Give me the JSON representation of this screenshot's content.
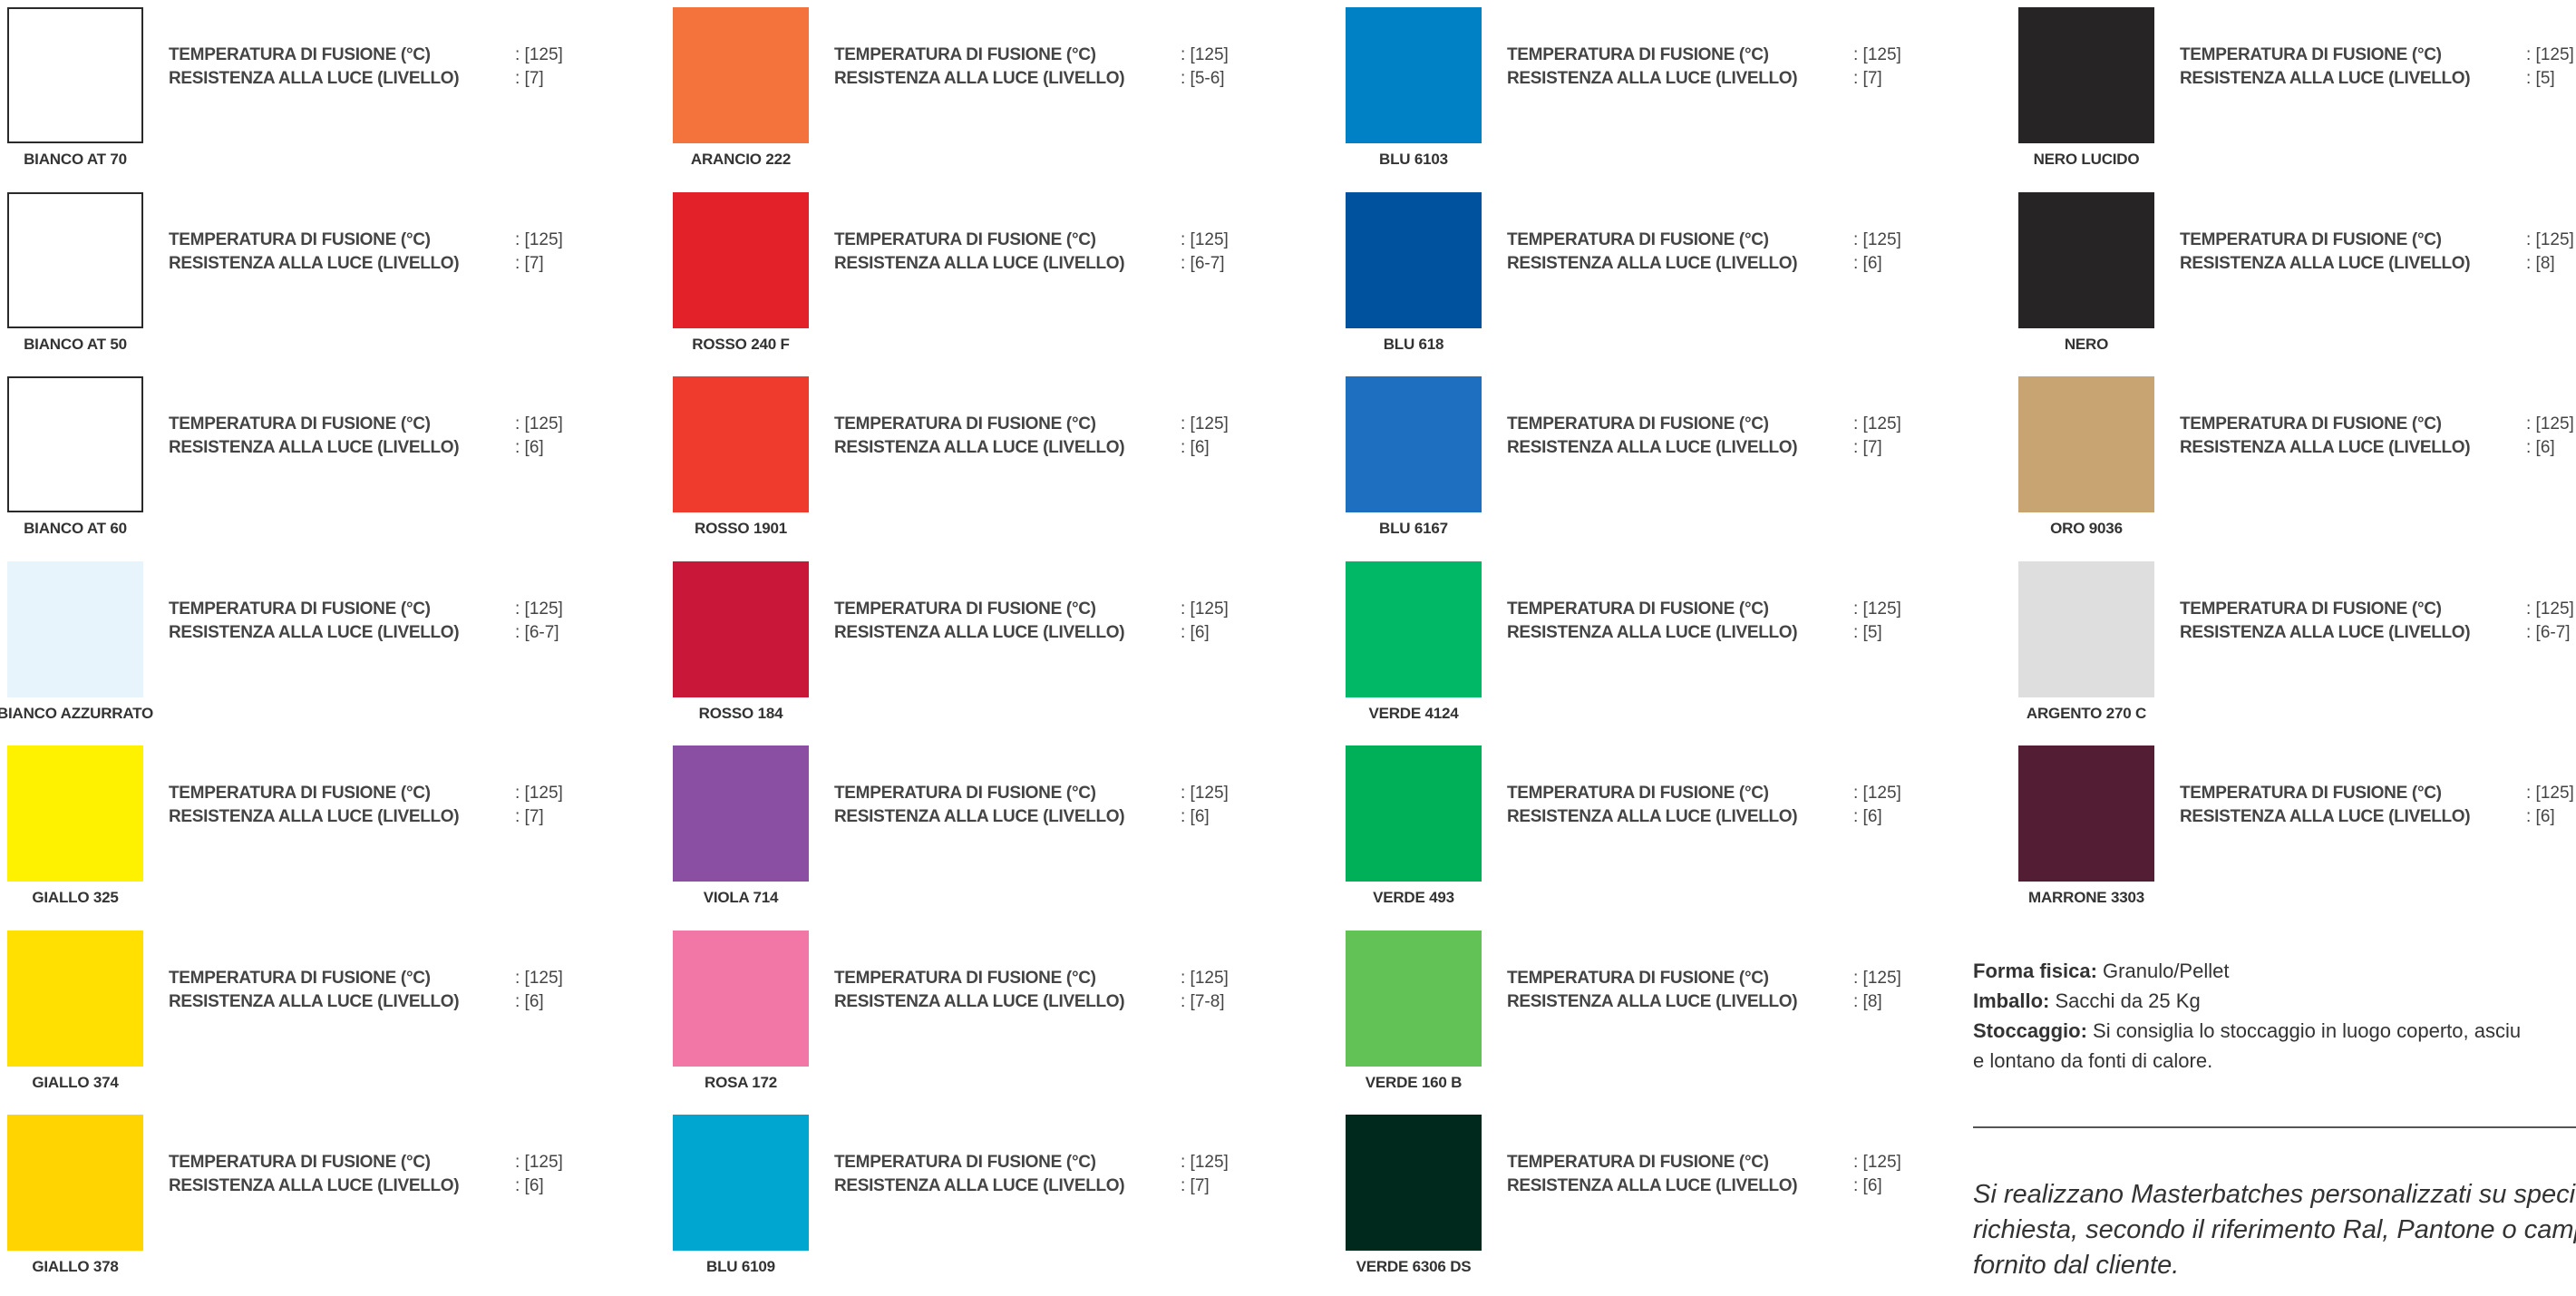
{
  "labels": {
    "temperatura": "TEMPERATURA DI FUSIONE (°C)",
    "resistenza": "RESISTENZA ALLA LUCE (LIVELLO)"
  },
  "columns": [
    {
      "items": [
        {
          "name": "BIANCO AT 70",
          "color": "#ffffff",
          "bordered": true,
          "temp": ": [125]",
          "light": ": [7]"
        },
        {
          "name": "BIANCO AT 50",
          "color": "#ffffff",
          "bordered": true,
          "temp": ": [125]",
          "light": ": [7]"
        },
        {
          "name": "BIANCO AT 60",
          "color": "#ffffff",
          "bordered": true,
          "temp": ": [125]",
          "light": ": [6]"
        },
        {
          "name": "BIANCO AZZURRATO",
          "color": "#e8f4fb",
          "bordered": false,
          "temp": ": [125]",
          "light": ": [6-7]"
        },
        {
          "name": "GIALLO 325",
          "color": "#fff200",
          "bordered": false,
          "temp": ": [125]",
          "light": ": [7]"
        },
        {
          "name": "GIALLO 374",
          "color": "#ffe000",
          "bordered": false,
          "temp": ": [125]",
          "light": ": [6]"
        },
        {
          "name": "GIALLO 378",
          "color": "#ffd400",
          "bordered": false,
          "temp": ": [125]",
          "light": ": [6]"
        }
      ]
    },
    {
      "items": [
        {
          "name": "ARANCIO 222",
          "color": "#f4733c",
          "bordered": false,
          "temp": ": [125]",
          "light": ": [5-6]"
        },
        {
          "name": "ROSSO  240 F",
          "color": "#e32129",
          "bordered": false,
          "temp": ": [125]",
          "light": ": [6-7]"
        },
        {
          "name": "ROSSO 1901",
          "color": "#ef3b2d",
          "bordered": false,
          "temp": ": [125]",
          "light": ": [6]"
        },
        {
          "name": "ROSSO 184",
          "color": "#c9173a",
          "bordered": false,
          "temp": ": [125]",
          "light": ": [6]"
        },
        {
          "name": "VIOLA 714",
          "color": "#8a4fa3",
          "bordered": false,
          "temp": ": [125]",
          "light": ": [6]"
        },
        {
          "name": "ROSA 172",
          "color": "#f277a6",
          "bordered": false,
          "temp": ": [125]",
          "light": ": [7-8]"
        },
        {
          "name": "BLU 6109",
          "color": "#00a5d0",
          "bordered": false,
          "temp": ": [125]",
          "light": ": [7]"
        }
      ]
    },
    {
      "items": [
        {
          "name": "BLU 6103",
          "color": "#0081c6",
          "bordered": false,
          "temp": ": [125]",
          "light": ": [7]"
        },
        {
          "name": "BLU 618",
          "color": "#00529f",
          "bordered": false,
          "temp": ": [125]",
          "light": ": [6]"
        },
        {
          "name": "BLU 6167",
          "color": "#1e6fc0",
          "bordered": false,
          "temp": ": [125]",
          "light": ": [7]"
        },
        {
          "name": "VERDE 4124",
          "color": "#00b865",
          "bordered": false,
          "temp": ": [125]",
          "light": ": [5]"
        },
        {
          "name": "VERDE 493",
          "color": "#00b058",
          "bordered": false,
          "temp": ": [125]",
          "light": ": [6]"
        },
        {
          "name": "VERDE  160 B",
          "color": "#63c256",
          "bordered": false,
          "temp": ": [125]",
          "light": ": [8]"
        },
        {
          "name": "VERDE 6306 DS",
          "color": "#00291d",
          "bordered": false,
          "temp": ": [125]",
          "light": ": [6]"
        }
      ]
    },
    {
      "items": [
        {
          "name": "NERO LUCIDO",
          "color": "#262425",
          "bordered": false,
          "temp": ": [125]",
          "light": ": [5]"
        },
        {
          "name": "NERO",
          "color": "#262425",
          "bordered": false,
          "temp": ": [125]",
          "light": ": [8]"
        },
        {
          "name": "ORO  9036",
          "color": "#c8a473",
          "bordered": false,
          "temp": ": [125]",
          "light": ": [6]"
        },
        {
          "name": "ARGENTO 270 C",
          "color": "#dedede",
          "bordered": false,
          "temp": ": [125]",
          "light": ": [6-7]"
        },
        {
          "name": "MARRONE 3303",
          "color": "#531e33",
          "bordered": false,
          "temp": ": [125]",
          "light": ": [6]"
        }
      ]
    }
  ],
  "info": {
    "forma_key": "Forma fisica:",
    "forma_val": " Granulo/Pellet",
    "imballo_key": "Imballo:",
    "imballo_val": " Sacchi da 25 Kg",
    "stoccaggio_key": "Stoccaggio:",
    "stoccaggio_val": " Si consiglia lo stoccaggio in luogo coperto, asciu",
    "stoccaggio_line2": "e lontano da fonti di calore."
  },
  "note": {
    "line1": "Si realizzano Masterbatches personalizzati su specifica",
    "line2": "richiesta, secondo il riferimento Ral, Pantone o campi",
    "line3": "fornito dal cliente."
  }
}
